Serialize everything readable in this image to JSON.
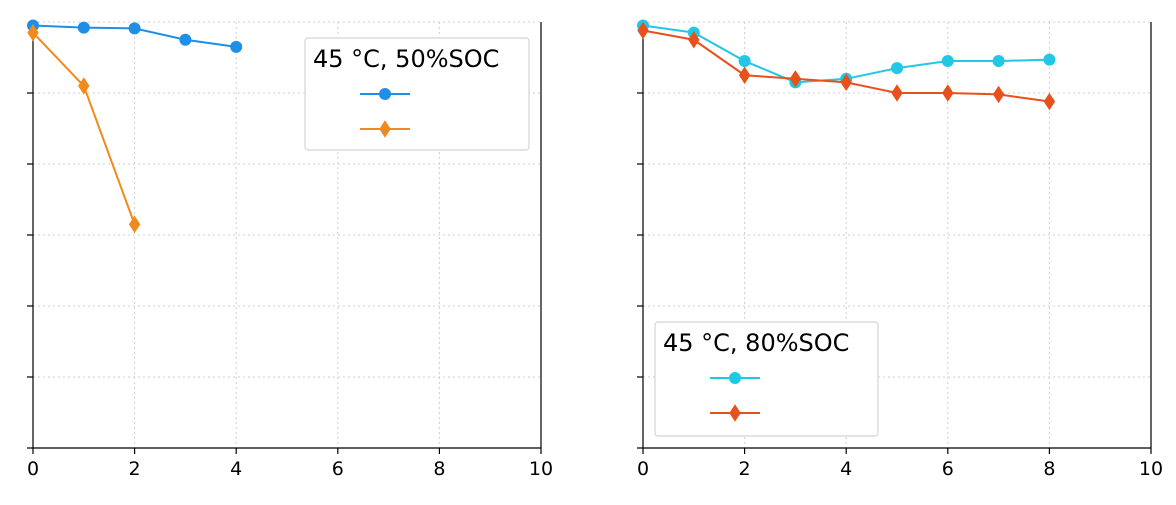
{
  "chart_data": [
    {
      "type": "line",
      "legend_title": "45 °C, 50%SOC",
      "legend_position": "top-right",
      "grid": true,
      "xlim": [
        0,
        10
      ],
      "xticks": [
        "0",
        "2",
        "4",
        "6",
        "8",
        "10"
      ],
      "ylim": [
        0,
        6
      ],
      "series": [
        {
          "color": "#1f8fe5",
          "marker": "circle",
          "x": [
            0,
            1,
            2,
            3,
            4
          ],
          "y": [
            5.95,
            5.92,
            5.91,
            5.75,
            5.65
          ]
        },
        {
          "color": "#f08a1c",
          "marker": "diamond",
          "x": [
            0,
            1,
            2
          ],
          "y": [
            5.85,
            5.1,
            3.15
          ]
        }
      ]
    },
    {
      "type": "line",
      "legend_title": "45 °C, 80%SOC",
      "legend_position": "bottom-left",
      "grid": true,
      "xlim": [
        0,
        10
      ],
      "xticks": [
        "0",
        "2",
        "4",
        "6",
        "8",
        "10"
      ],
      "ylim": [
        0,
        6
      ],
      "series": [
        {
          "color": "#22c7e6",
          "marker": "circle",
          "x": [
            0,
            1,
            2,
            3,
            4,
            5,
            6,
            7,
            8
          ],
          "y": [
            5.95,
            5.85,
            5.45,
            5.15,
            5.2,
            5.35,
            5.45,
            5.45,
            5.47
          ]
        },
        {
          "color": "#e8501c",
          "marker": "diamond",
          "x": [
            0,
            1,
            2,
            3,
            4,
            5,
            6,
            7,
            8
          ],
          "y": [
            5.88,
            5.75,
            5.25,
            5.2,
            5.15,
            5.0,
            5.0,
            4.98,
            4.88
          ]
        }
      ]
    }
  ]
}
